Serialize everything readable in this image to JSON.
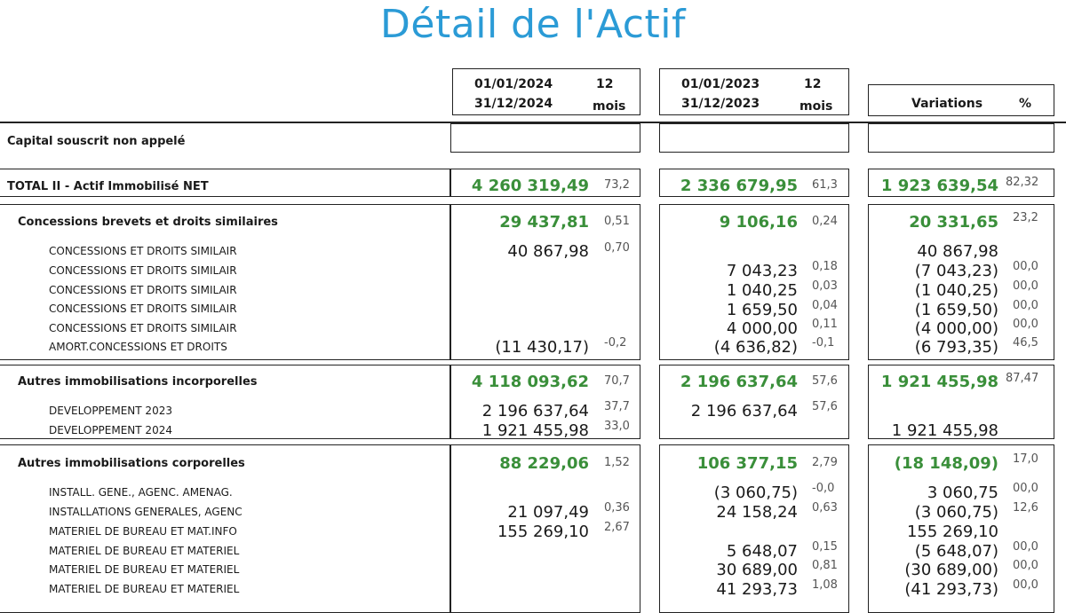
{
  "title": "Détail de l'Actif",
  "header": {
    "col1": {
      "start": "01/01/2024",
      "end": "31/12/2024",
      "n": "12",
      "unit": "mois"
    },
    "col2": {
      "start": "01/01/2023",
      "end": "31/12/2023",
      "n": "12",
      "unit": "mois"
    },
    "col3": {
      "label": "Variations",
      "pct": "%"
    }
  },
  "capital_label": "Capital souscrit non appelé",
  "total": {
    "label": "TOTAL II - Actif Immobilisé NET",
    "a1": "4 260 319,49",
    "p1": "73,2",
    "a2": "2 336 679,95",
    "p2": "61,3",
    "a3": "1 923 639,54",
    "p3": "82,32"
  },
  "sec1": {
    "label": "Concessions brevets et droits similaires",
    "a1": "29 437,81",
    "p1": "0,51",
    "a2": "9 106,16",
    "p2": "0,24",
    "a3": "20 331,65",
    "p3": "23,2",
    "rows": [
      {
        "label": "CONCESSIONS ET DROITS SIMILAIR",
        "a1": "40 867,98",
        "p1": "0,70",
        "a2": "",
        "p2": "",
        "a3": "40 867,98",
        "p3": ""
      },
      {
        "label": "CONCESSIONS ET DROITS SIMILAIR",
        "a1": "",
        "p1": "",
        "a2": "7 043,23",
        "p2": "0,18",
        "a3": "(7 043,23)",
        "p3": "00,0"
      },
      {
        "label": "CONCESSIONS ET DROITS SIMILAIR",
        "a1": "",
        "p1": "",
        "a2": "1 040,25",
        "p2": "0,03",
        "a3": "(1 040,25)",
        "p3": "00,0"
      },
      {
        "label": "CONCESSIONS ET DROITS SIMILAIR",
        "a1": "",
        "p1": "",
        "a2": "1 659,50",
        "p2": "0,04",
        "a3": "(1 659,50)",
        "p3": "00,0"
      },
      {
        "label": "CONCESSIONS ET DROITS SIMILAIR",
        "a1": "",
        "p1": "",
        "a2": "4 000,00",
        "p2": "0,11",
        "a3": "(4 000,00)",
        "p3": "00,0"
      },
      {
        "label": "AMORT.CONCESSIONS ET DROITS",
        "a1": "(11 430,17)",
        "p1": "-0,2",
        "a2": "(4 636,82)",
        "p2": "-0,1",
        "a3": "(6 793,35)",
        "p3": "46,5"
      }
    ]
  },
  "sec2": {
    "label": "Autres immobilisations incorporelles",
    "a1": "4 118 093,62",
    "p1": "70,7",
    "a2": "2 196 637,64",
    "p2": "57,6",
    "a3": "1 921 455,98",
    "p3": "87,47",
    "rows": [
      {
        "label": "DEVELOPPEMENT 2023",
        "a1": "2 196 637,64",
        "p1": "37,7",
        "a2": "2 196 637,64",
        "p2": "57,6",
        "a3": "",
        "p3": ""
      },
      {
        "label": "DEVELOPPEMENT 2024",
        "a1": "1 921 455,98",
        "p1": "33,0",
        "a2": "",
        "p2": "",
        "a3": "1 921 455,98",
        "p3": ""
      }
    ]
  },
  "sec3": {
    "label": "Autres immobilisations corporelles",
    "a1": "88 229,06",
    "p1": "1,52",
    "a2": "106 377,15",
    "p2": "2,79",
    "a3": "(18 148,09)",
    "p3": "17,0",
    "rows": [
      {
        "label": "INSTALL. GENE., AGENC. AMENAG.",
        "a1": "",
        "p1": "",
        "a2": "(3 060,75)",
        "p2": "-0,0",
        "a3": "3 060,75",
        "p3": "00,0"
      },
      {
        "label": "INSTALLATIONS GENERALES, AGENC",
        "a1": "21 097,49",
        "p1": "0,36",
        "a2": "24 158,24",
        "p2": "0,63",
        "a3": "(3 060,75)",
        "p3": "12,6"
      },
      {
        "label": "MATERIEL DE BUREAU ET MAT.INFO",
        "a1": "155 269,10",
        "p1": "2,67",
        "a2": "",
        "p2": "",
        "a3": "155 269,10",
        "p3": ""
      },
      {
        "label": "MATERIEL DE BUREAU ET MATERIEL",
        "a1": "",
        "p1": "",
        "a2": "5 648,07",
        "p2": "0,15",
        "a3": "(5 648,07)",
        "p3": "00,0"
      },
      {
        "label": "MATERIEL DE BUREAU ET MATERIEL",
        "a1": "",
        "p1": "",
        "a2": "30 689,00",
        "p2": "0,81",
        "a3": "(30 689,00)",
        "p3": "00,0"
      },
      {
        "label": "MATERIEL DE BUREAU ET MATERIEL",
        "a1": "",
        "p1": "",
        "a2": "41 293,73",
        "p2": "1,08",
        "a3": "(41 293,73)",
        "p3": "00,0"
      }
    ]
  }
}
